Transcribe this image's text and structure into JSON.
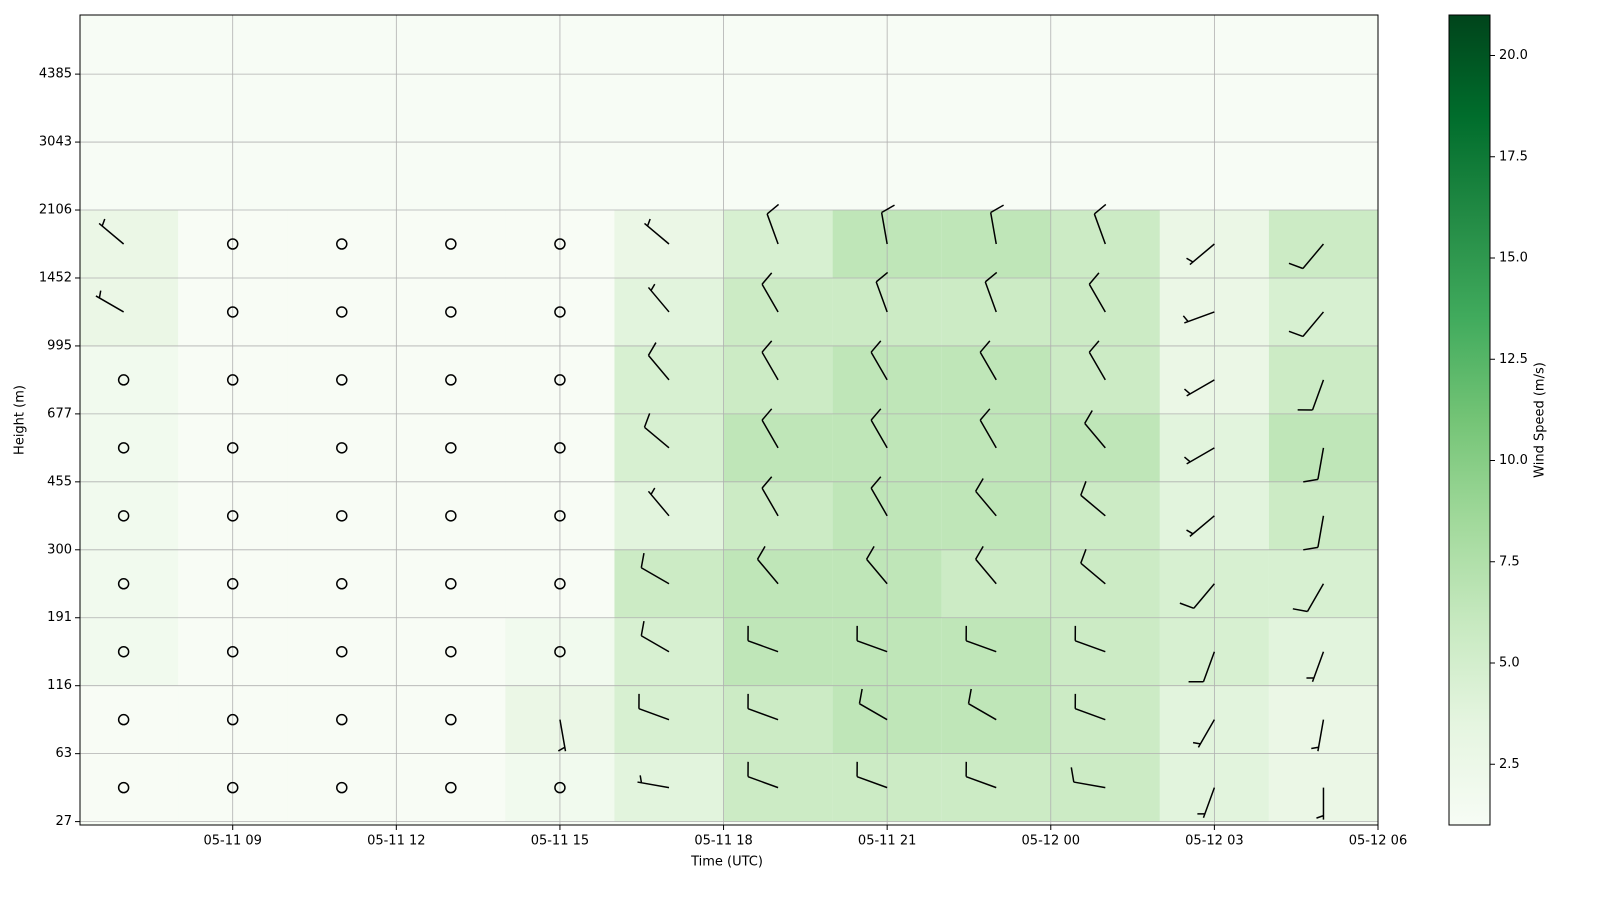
{
  "chart_data": {
    "type": "wind-barbs",
    "xlabel": "Time (UTC)",
    "ylabel": "Height (m)",
    "colorbar_label": "Wind Speed (m/s)",
    "xlim": [
      6.2,
      30
    ],
    "xticks": [
      {
        "value": 9,
        "label": "05-11 09"
      },
      {
        "value": 12,
        "label": "05-11 12"
      },
      {
        "value": 15,
        "label": "05-11 15"
      },
      {
        "value": 18,
        "label": "05-11 18"
      },
      {
        "value": 21,
        "label": "05-11 21"
      },
      {
        "value": 24,
        "label": "05-12 00"
      },
      {
        "value": 27,
        "label": "05-12 03"
      },
      {
        "value": 30,
        "label": "05-12 06"
      }
    ],
    "ylim": [
      -0.05,
      11.87
    ],
    "yticks": [
      {
        "value": 0,
        "label": "27"
      },
      {
        "value": 1,
        "label": "63"
      },
      {
        "value": 2,
        "label": "116"
      },
      {
        "value": 3,
        "label": "191"
      },
      {
        "value": 4,
        "label": "300"
      },
      {
        "value": 5,
        "label": "455"
      },
      {
        "value": 6,
        "label": "677"
      },
      {
        "value": 7,
        "label": "995"
      },
      {
        "value": 8,
        "label": "1452"
      },
      {
        "value": 9,
        "label": "2106"
      },
      {
        "value": 10,
        "label": "3043"
      },
      {
        "value": 11,
        "label": "4385"
      }
    ],
    "grid": true,
    "clim": [
      1,
      21
    ],
    "cticks": [
      2.5,
      {
        "value": 5,
        "label": "5.0"
      },
      {
        "value": 7.5,
        "label": "7.5"
      },
      {
        "value": 10,
        "label": "10.0"
      },
      {
        "value": 12.5,
        "label": "12.5"
      },
      {
        "value": 15,
        "label": "15.0"
      },
      {
        "value": 17.5,
        "label": "17.5"
      },
      {
        "value": 20,
        "label": "20.0"
      }
    ],
    "colormap": [
      "#f7fcf5",
      "#e5f5e0",
      "#c7e9c0",
      "#a1d99b",
      "#74c476",
      "#41ab5d",
      "#238b45",
      "#006d2c",
      "#00441b"
    ],
    "x": [
      7,
      9,
      11,
      13,
      15,
      17,
      19,
      21,
      23,
      25,
      27,
      29
    ],
    "levels": [
      0.5,
      1.5,
      2.5,
      3.5,
      4.5,
      5.5,
      6.5,
      7.5,
      8.5
    ],
    "speed": [
      [
        1,
        1,
        1,
        1,
        2,
        4,
        6,
        6,
        6,
        6,
        4,
        3
      ],
      [
        1,
        1,
        1,
        1,
        3,
        5,
        6,
        7,
        7,
        6,
        4,
        3
      ],
      [
        2,
        1,
        1,
        1,
        2,
        5,
        7,
        7,
        7,
        6,
        5,
        4
      ],
      [
        2,
        1,
        1,
        1,
        1,
        6,
        7,
        7,
        6,
        6,
        5,
        5
      ],
      [
        2,
        1,
        1,
        1,
        1,
        4,
        6,
        7,
        7,
        6,
        4,
        6
      ],
      [
        2,
        1,
        1,
        1,
        1,
        5,
        7,
        7,
        7,
        7,
        4,
        7
      ],
      [
        2,
        1,
        1,
        1,
        1,
        5,
        6,
        7,
        7,
        6,
        3,
        6
      ],
      [
        3,
        1,
        1,
        1,
        1,
        4,
        6,
        6,
        6,
        6,
        3,
        5
      ],
      [
        3,
        1,
        1,
        1,
        1,
        3,
        5,
        7,
        7,
        6,
        3,
        6
      ]
    ],
    "direction": [
      [
        200,
        0,
        0,
        0,
        180,
        280,
        290,
        290,
        290,
        280,
        200,
        180
      ],
      [
        220,
        0,
        0,
        0,
        170,
        290,
        290,
        300,
        300,
        290,
        210,
        190
      ],
      [
        210,
        0,
        0,
        0,
        190,
        300,
        290,
        290,
        290,
        290,
        200,
        200
      ],
      [
        230,
        0,
        0,
        0,
        0,
        300,
        320,
        320,
        320,
        310,
        220,
        210
      ],
      [
        220,
        0,
        0,
        0,
        0,
        320,
        330,
        330,
        320,
        310,
        230,
        190
      ],
      [
        200,
        0,
        0,
        0,
        0,
        310,
        330,
        330,
        330,
        320,
        240,
        190
      ],
      [
        210,
        0,
        0,
        0,
        0,
        320,
        330,
        330,
        330,
        330,
        240,
        200
      ],
      [
        300,
        0,
        0,
        0,
        0,
        320,
        330,
        340,
        340,
        330,
        250,
        220
      ],
      [
        310,
        0,
        0,
        0,
        0,
        310,
        340,
        350,
        350,
        340,
        230,
        220
      ]
    ]
  }
}
